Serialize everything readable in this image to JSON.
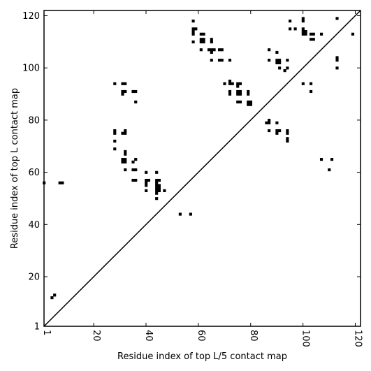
{
  "chart_data": {
    "type": "scatter",
    "title": "",
    "xlabel": "Residue index of top L/5 contact map",
    "ylabel": "Residue index of top L contact map",
    "xlim": [
      1,
      122
    ],
    "ylim": [
      1,
      122
    ],
    "xticks": [
      1,
      20,
      40,
      60,
      80,
      100,
      120
    ],
    "yticks": [
      1,
      20,
      40,
      60,
      80,
      100,
      120
    ],
    "grid": false,
    "diagonal_line": true,
    "lower_triangle": [
      [
        4,
        12
      ],
      [
        5,
        13
      ],
      [
        53,
        44
      ],
      [
        57,
        44
      ],
      [
        44,
        50
      ],
      [
        44,
        52
      ],
      [
        44,
        53
      ],
      [
        45,
        53
      ],
      [
        47,
        53
      ],
      [
        40,
        53
      ],
      [
        44,
        54
      ],
      [
        45,
        54
      ],
      [
        44,
        55
      ],
      [
        45,
        55
      ],
      [
        40,
        55
      ],
      [
        40,
        56
      ],
      [
        44,
        56
      ],
      [
        44,
        57
      ],
      [
        45,
        57
      ],
      [
        40,
        57
      ],
      [
        41,
        57
      ],
      [
        35,
        57
      ],
      [
        36,
        57
      ],
      [
        40,
        60
      ],
      [
        44,
        60
      ],
      [
        35,
        61
      ],
      [
        36,
        61
      ],
      [
        32,
        61
      ],
      [
        35,
        64
      ],
      [
        31,
        64
      ],
      [
        32,
        64
      ],
      [
        31,
        65
      ],
      [
        32,
        65
      ],
      [
        36,
        65
      ],
      [
        32,
        67
      ],
      [
        32,
        68
      ],
      [
        28,
        69
      ],
      [
        28,
        72
      ],
      [
        28,
        75
      ],
      [
        28,
        76
      ],
      [
        31,
        75
      ],
      [
        32,
        75
      ],
      [
        32,
        76
      ],
      [
        36,
        87
      ],
      [
        31,
        90
      ],
      [
        31,
        91
      ],
      [
        32,
        91
      ],
      [
        35,
        91
      ],
      [
        36,
        91
      ],
      [
        28,
        94
      ],
      [
        31,
        94
      ],
      [
        32,
        94
      ]
    ],
    "upper_triangle": [
      [
        1,
        56
      ],
      [
        7,
        56
      ],
      [
        8,
        56
      ],
      [
        58,
        118
      ],
      [
        58,
        115
      ],
      [
        59,
        115
      ],
      [
        58,
        114
      ],
      [
        58,
        113
      ],
      [
        58,
        110
      ],
      [
        61,
        113
      ],
      [
        62,
        113
      ],
      [
        61,
        111
      ],
      [
        62,
        111
      ],
      [
        61,
        110
      ],
      [
        62,
        110
      ],
      [
        65,
        111
      ],
      [
        65,
        110
      ],
      [
        61,
        107
      ],
      [
        64,
        107
      ],
      [
        65,
        107
      ],
      [
        66,
        107
      ],
      [
        68,
        107
      ],
      [
        69,
        107
      ],
      [
        65,
        106
      ],
      [
        65,
        103
      ],
      [
        68,
        103
      ],
      [
        69,
        103
      ],
      [
        72,
        103
      ],
      [
        70,
        94
      ],
      [
        72,
        95
      ],
      [
        72,
        94
      ],
      [
        73,
        94
      ],
      [
        72,
        91
      ],
      [
        72,
        90
      ],
      [
        75,
        94
      ],
      [
        76,
        94
      ],
      [
        75,
        93
      ],
      [
        75,
        91
      ],
      [
        76,
        91
      ],
      [
        75,
        90
      ],
      [
        76,
        90
      ],
      [
        79,
        91
      ],
      [
        79,
        90
      ],
      [
        75,
        87
      ],
      [
        76,
        87
      ],
      [
        79,
        87
      ],
      [
        80,
        87
      ],
      [
        79,
        86
      ],
      [
        80,
        86
      ],
      [
        87,
        107
      ],
      [
        90,
        106
      ],
      [
        87,
        103
      ],
      [
        90,
        103
      ],
      [
        91,
        103
      ],
      [
        94,
        103
      ],
      [
        90,
        102
      ],
      [
        91,
        102
      ],
      [
        91,
        100
      ],
      [
        94,
        100
      ],
      [
        93,
        99
      ],
      [
        95,
        118
      ],
      [
        95,
        115
      ],
      [
        97,
        115
      ],
      [
        100,
        119
      ],
      [
        100,
        118
      ],
      [
        100,
        115
      ],
      [
        100,
        114
      ],
      [
        101,
        114
      ],
      [
        100,
        113
      ],
      [
        101,
        113
      ],
      [
        103,
        113
      ],
      [
        104,
        113
      ],
      [
        107,
        113
      ],
      [
        103,
        111
      ],
      [
        104,
        111
      ],
      [
        113,
        119
      ],
      [
        119,
        113
      ],
      [
        113,
        104
      ],
      [
        113,
        103
      ],
      [
        113,
        100
      ],
      [
        100,
        94
      ],
      [
        103,
        94
      ],
      [
        103,
        91
      ],
      [
        86,
        79
      ],
      [
        87,
        79
      ],
      [
        87,
        80
      ],
      [
        90,
        79
      ],
      [
        87,
        76
      ],
      [
        90,
        76
      ],
      [
        91,
        76
      ],
      [
        90,
        75
      ],
      [
        94,
        76
      ],
      [
        94,
        75
      ],
      [
        94,
        73
      ],
      [
        94,
        72
      ],
      [
        107,
        65
      ],
      [
        111,
        65
      ],
      [
        110,
        61
      ]
    ]
  }
}
